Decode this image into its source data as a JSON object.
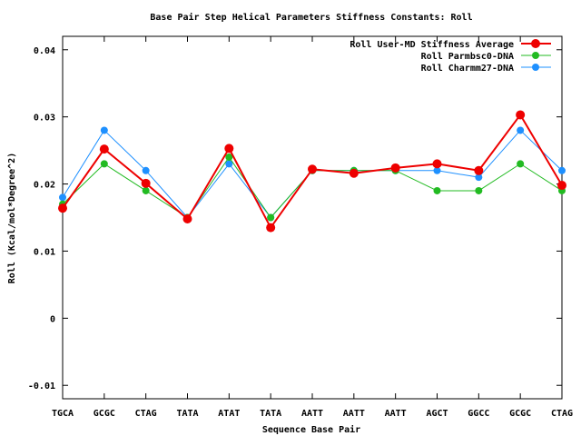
{
  "chart_data": {
    "type": "line",
    "title": "Base Pair Step Helical Parameters Stiffness Constants: Roll",
    "xlabel": "Sequence Base Pair",
    "ylabel": "Roll (Kcal/mol*Degree^2)",
    "categories": [
      "TGCA",
      "GCGC",
      "CTAG",
      "TATA",
      "ATAT",
      "TATA",
      "AATT",
      "AATT",
      "AATT",
      "AGCT",
      "GGCC",
      "GCGC",
      "CTAG"
    ],
    "ylim": [
      -0.012,
      0.042
    ],
    "yticks": [
      -0.01,
      0,
      0.01,
      0.02,
      0.03,
      0.04
    ],
    "ytick_labels": [
      "-0.01",
      "0",
      "0.01",
      "0.02",
      "0.03",
      "0.04"
    ],
    "grid": false,
    "legend_position": "top-right",
    "series": [
      {
        "name": "Roll User-MD Stiffness Average",
        "color": "#ee0000",
        "values": [
          0.0164,
          0.0252,
          0.0201,
          0.0148,
          0.0253,
          0.0135,
          0.0222,
          0.0216,
          0.0224,
          0.023,
          0.022,
          0.0303,
          0.0198
        ]
      },
      {
        "name": "Roll Parmbsc0-DNA",
        "color": "#22bb22",
        "values": [
          0.017,
          0.023,
          0.019,
          0.015,
          0.024,
          0.015,
          0.022,
          0.022,
          0.022,
          0.019,
          0.019,
          0.023,
          0.019
        ]
      },
      {
        "name": "Roll Charmm27-DNA",
        "color": "#1e90ff",
        "values": [
          0.018,
          0.028,
          0.022,
          0.015,
          0.023,
          0.015,
          0.022,
          0.022,
          0.022,
          0.022,
          0.021,
          0.028,
          0.022
        ]
      }
    ]
  }
}
